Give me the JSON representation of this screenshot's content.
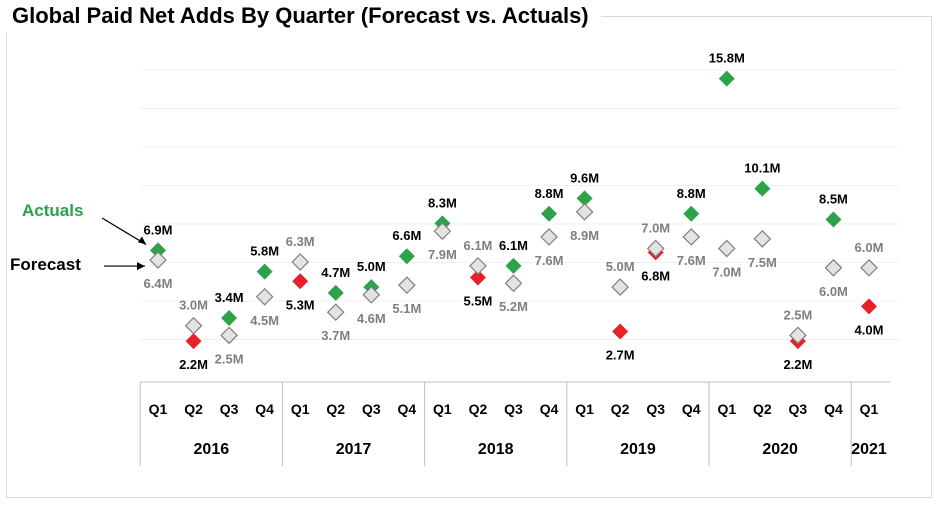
{
  "title": "Global Paid Net Adds By Quarter (Forecast vs. Actuals)",
  "colors": {
    "beat": "#2ca24a",
    "miss": "#e8202a",
    "forecast_fill": "#e3e3e3",
    "forecast_stroke": "#7f7f7f",
    "actuals_legend": "#2ca24a",
    "grid": "#f0f0f0",
    "axis": "#bfbfbf"
  },
  "chart_data": {
    "type": "scatter",
    "title": "Global Paid Net Adds By Quarter (Forecast vs. Actuals)",
    "unit": "M",
    "grid": true,
    "ylim": [
      0,
      16
    ],
    "years": [
      {
        "label": "2016",
        "quarters": [
          "Q1",
          "Q2",
          "Q3",
          "Q4"
        ]
      },
      {
        "label": "2017",
        "quarters": [
          "Q1",
          "Q2",
          "Q3",
          "Q4"
        ]
      },
      {
        "label": "2018",
        "quarters": [
          "Q1",
          "Q2",
          "Q3",
          "Q4"
        ]
      },
      {
        "label": "2019",
        "quarters": [
          "Q1",
          "Q2",
          "Q3",
          "Q4"
        ]
      },
      {
        "label": "2020",
        "quarters": [
          "Q1",
          "Q2",
          "Q3",
          "Q4"
        ]
      },
      {
        "label": "2021",
        "quarters": [
          "Q1"
        ]
      }
    ],
    "series": [
      {
        "name": "Actuals",
        "values": [
          6.9,
          2.2,
          3.4,
          5.8,
          5.3,
          4.7,
          5.0,
          6.6,
          8.3,
          5.5,
          6.1,
          8.8,
          9.6,
          2.7,
          6.8,
          8.8,
          15.8,
          10.1,
          2.2,
          8.5,
          4.0
        ],
        "labels": [
          "6.9M",
          "2.2M",
          "3.4M",
          "5.8M",
          "5.3M",
          "4.7M",
          "5.0M",
          "6.6M",
          "8.3M",
          "5.5M",
          "6.1M",
          "8.8M",
          "9.6M",
          "2.7M",
          "6.8M",
          "8.8M",
          "15.8M",
          "10.1M",
          "2.2M",
          "8.5M",
          "4.0M"
        ]
      },
      {
        "name": "Forecast",
        "values": [
          6.4,
          3.0,
          2.5,
          4.5,
          6.3,
          3.7,
          4.6,
          5.1,
          7.9,
          6.1,
          5.2,
          7.6,
          8.9,
          5.0,
          7.0,
          7.6,
          7.0,
          7.5,
          2.5,
          6.0,
          6.0
        ],
        "labels": [
          "6.4M",
          "3.0M",
          "2.5M",
          "4.5M",
          "6.3M",
          "3.7M",
          "4.6M",
          "5.1M",
          "7.9M",
          "6.1M",
          "5.2M",
          "7.6M",
          "8.9M",
          "5.0M",
          "7.0M",
          "7.6M",
          "7.0M",
          "7.5M",
          "2.5M",
          "6.0M",
          "6.0M"
        ]
      }
    ],
    "legend": {
      "actuals": "Actuals",
      "forecast": "Forecast",
      "placement": "left"
    }
  }
}
